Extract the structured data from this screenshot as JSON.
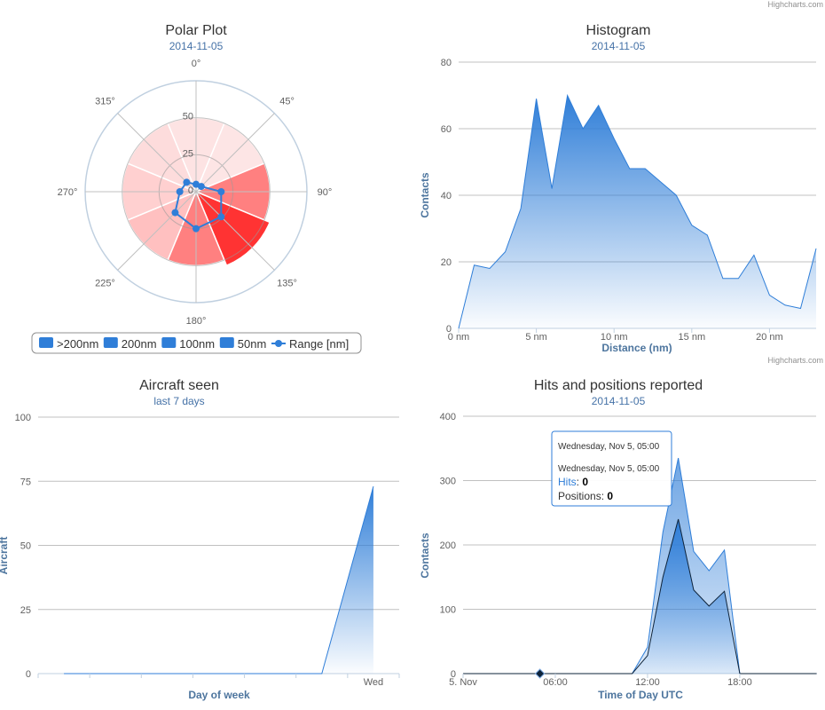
{
  "credits": "Highcharts.com",
  "chart_data": [
    {
      "type": "polar",
      "title": "Polar Plot",
      "subtitle": "2014-11-05",
      "angle_labels": [
        "0°",
        "45°",
        "90°",
        "135°",
        "180°",
        "225°",
        "270°",
        "315°"
      ],
      "radial_ticks": [
        "0",
        "25",
        "50"
      ],
      "rmax": 75,
      "sectors": [
        {
          "angle": 0,
          "value": 50,
          "color": "#fde3e3"
        },
        {
          "angle": 45,
          "value": 50,
          "color": "#fde5e5"
        },
        {
          "angle": 90,
          "value": 50,
          "color": "#ff8080"
        },
        {
          "angle": 135,
          "value": 54,
          "color": "#ff3333"
        },
        {
          "angle": 180,
          "value": 50,
          "color": "#ff8080"
        },
        {
          "angle": 225,
          "value": 50,
          "color": "#ffc0c0"
        },
        {
          "angle": 270,
          "value": 50,
          "color": "#ffd0d0"
        },
        {
          "angle": 315,
          "value": 50,
          "color": "#fddcdc"
        }
      ],
      "range_series": {
        "name": "Range [nm]",
        "angles": [
          0,
          45,
          90,
          135,
          180,
          225,
          270,
          315
        ],
        "values": [
          5,
          5,
          17,
          24,
          25,
          20,
          11,
          9
        ],
        "color": "#2f7ed8"
      },
      "legend": [
        {
          "name": ">200nm",
          "color": "#2f7ed8"
        },
        {
          "name": "200nm",
          "color": "#2f7ed8"
        },
        {
          "name": "100nm",
          "color": "#2f7ed8"
        },
        {
          "name": "50nm",
          "color": "#2f7ed8"
        },
        {
          "name": "Range [nm]",
          "color": "#2f7ed8",
          "line": true
        }
      ]
    },
    {
      "type": "area",
      "title": "Histogram",
      "subtitle": "2014-11-05",
      "xlabel": "Distance (nm)",
      "ylabel": "Contacts",
      "x": [
        0,
        1,
        2,
        3,
        4,
        5,
        6,
        7,
        8,
        9,
        10,
        11,
        12,
        13,
        14,
        15,
        16,
        17,
        18,
        19,
        20,
        21,
        22,
        23
      ],
      "values": [
        0,
        19,
        18,
        23,
        36,
        69,
        42,
        70,
        60,
        67,
        57,
        48,
        48,
        44,
        40,
        31,
        28,
        15,
        15,
        22,
        10,
        7,
        6,
        24
      ],
      "xticks": [
        "0 nm",
        "5 nm",
        "10 nm",
        "15 nm",
        "20 nm"
      ],
      "yticks": [
        "0",
        "20",
        "40",
        "60",
        "80"
      ],
      "ylim": [
        0,
        80
      ],
      "xlim": [
        0,
        23
      ],
      "grid": true,
      "color": "#2f7ed8"
    },
    {
      "type": "area",
      "title": "Aircraft seen",
      "subtitle": "last 7 days",
      "xlabel": "Day of week",
      "ylabel": "Aircraft",
      "categories": [
        "",
        "",
        "",
        "",
        "",
        "",
        "Wed"
      ],
      "values": [
        0,
        0,
        0,
        0,
        0,
        0,
        73
      ],
      "yticks": [
        "0",
        "25",
        "50",
        "75",
        "100"
      ],
      "ylim": [
        0,
        100
      ],
      "grid": true,
      "color": "#2f7ed8"
    },
    {
      "type": "area",
      "title": "Hits and positions reported",
      "subtitle": "2014-11-05",
      "xlabel": "Time of Day UTC",
      "ylabel": "Contacts",
      "x": [
        0,
        1,
        2,
        3,
        4,
        5,
        6,
        7,
        8,
        9,
        10,
        11,
        12,
        13,
        14,
        15,
        16,
        17,
        18,
        19,
        20,
        21,
        22,
        23
      ],
      "xticks": [
        "5. Nov",
        "06:00",
        "12:00",
        "18:00"
      ],
      "yticks": [
        "0",
        "100",
        "200",
        "300",
        "400"
      ],
      "ylim": [
        0,
        400
      ],
      "grid": true,
      "series": [
        {
          "name": "Hits",
          "values": [
            0,
            0,
            0,
            0,
            0,
            0,
            0,
            0,
            0,
            0,
            0,
            0,
            41,
            220,
            335,
            190,
            160,
            192,
            0,
            0,
            0,
            0,
            0,
            0
          ],
          "color": "#2f7ed8"
        },
        {
          "name": "Positions",
          "values": [
            0,
            0,
            0,
            0,
            0,
            0,
            0,
            0,
            0,
            0,
            0,
            0,
            28,
            150,
            240,
            130,
            105,
            128,
            0,
            0,
            0,
            0,
            0,
            0
          ],
          "color": "#0d233a"
        }
      ],
      "tooltip": {
        "header": "Wednesday, Nov 5, 05:00",
        "line": "Wednesday, Nov 5, 05:00",
        "hits_label": "Hits",
        "hits": "0",
        "positions_label": "Positions",
        "positions": "0"
      }
    }
  ]
}
